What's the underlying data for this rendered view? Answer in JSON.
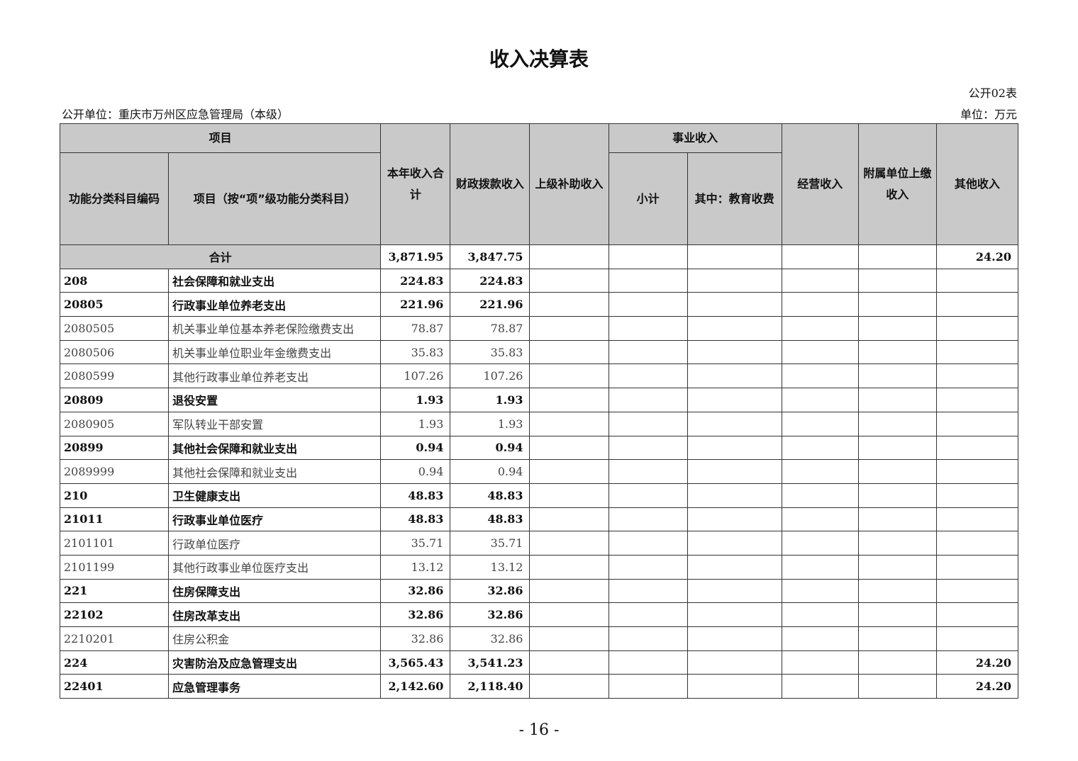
{
  "title": "收入决算表",
  "table_no": "公开02表",
  "org": "公开单位：重庆市万州区应急管理局（本级）",
  "unit": "单位：万元",
  "headers": {
    "item": "项目",
    "code": "功能分类科目编码",
    "name": "项目（按“项”级功能分类科目）",
    "total": "本年收入合计",
    "fiscal": "财政拨款收入",
    "superior": "上级补助收入",
    "career": "事业收入",
    "subtotal": "小计",
    "edu": "其中：教育收费",
    "business": "经营收入",
    "affiliated": "附属单位上缴收入",
    "other": "其他收入"
  },
  "total_row": {
    "label": "合计",
    "total": "3,871.95",
    "fiscal": "3,847.75",
    "other": "24.20"
  },
  "rows": [
    {
      "code": "208",
      "name": "社会保障和就业支出",
      "total": "224.83",
      "fiscal": "224.83",
      "other": "",
      "bold": true
    },
    {
      "code": "20805",
      "name": "行政事业单位养老支出",
      "total": "221.96",
      "fiscal": "221.96",
      "other": "",
      "bold": true
    },
    {
      "code": "2080505",
      "name": "机关事业单位基本养老保险缴费支出",
      "total": "78.87",
      "fiscal": "78.87",
      "other": "",
      "bold": false
    },
    {
      "code": "2080506",
      "name": "机关事业单位职业年金缴费支出",
      "total": "35.83",
      "fiscal": "35.83",
      "other": "",
      "bold": false
    },
    {
      "code": "2080599",
      "name": "其他行政事业单位养老支出",
      "total": "107.26",
      "fiscal": "107.26",
      "other": "",
      "bold": false
    },
    {
      "code": "20809",
      "name": "退役安置",
      "total": "1.93",
      "fiscal": "1.93",
      "other": "",
      "bold": true
    },
    {
      "code": "2080905",
      "name": "军队转业干部安置",
      "total": "1.93",
      "fiscal": "1.93",
      "other": "",
      "bold": false
    },
    {
      "code": "20899",
      "name": "其他社会保障和就业支出",
      "total": "0.94",
      "fiscal": "0.94",
      "other": "",
      "bold": true
    },
    {
      "code": "2089999",
      "name": "其他社会保障和就业支出",
      "total": "0.94",
      "fiscal": "0.94",
      "other": "",
      "bold": false
    },
    {
      "code": "210",
      "name": "卫生健康支出",
      "total": "48.83",
      "fiscal": "48.83",
      "other": "",
      "bold": true
    },
    {
      "code": "21011",
      "name": "行政事业单位医疗",
      "total": "48.83",
      "fiscal": "48.83",
      "other": "",
      "bold": true
    },
    {
      "code": "2101101",
      "name": "行政单位医疗",
      "total": "35.71",
      "fiscal": "35.71",
      "other": "",
      "bold": false
    },
    {
      "code": "2101199",
      "name": "其他行政事业单位医疗支出",
      "total": "13.12",
      "fiscal": "13.12",
      "other": "",
      "bold": false
    },
    {
      "code": "221",
      "name": "住房保障支出",
      "total": "32.86",
      "fiscal": "32.86",
      "other": "",
      "bold": true
    },
    {
      "code": "22102",
      "name": "住房改革支出",
      "total": "32.86",
      "fiscal": "32.86",
      "other": "",
      "bold": true
    },
    {
      "code": "2210201",
      "name": "住房公积金",
      "total": "32.86",
      "fiscal": "32.86",
      "other": "",
      "bold": false
    },
    {
      "code": "224",
      "name": "灾害防治及应急管理支出",
      "total": "3,565.43",
      "fiscal": "3,541.23",
      "other": "24.20",
      "bold": true
    },
    {
      "code": "22401",
      "name": "应急管理事务",
      "total": "2,142.60",
      "fiscal": "2,118.40",
      "other": "24.20",
      "bold": true
    }
  ],
  "page_number": "- 16 -"
}
